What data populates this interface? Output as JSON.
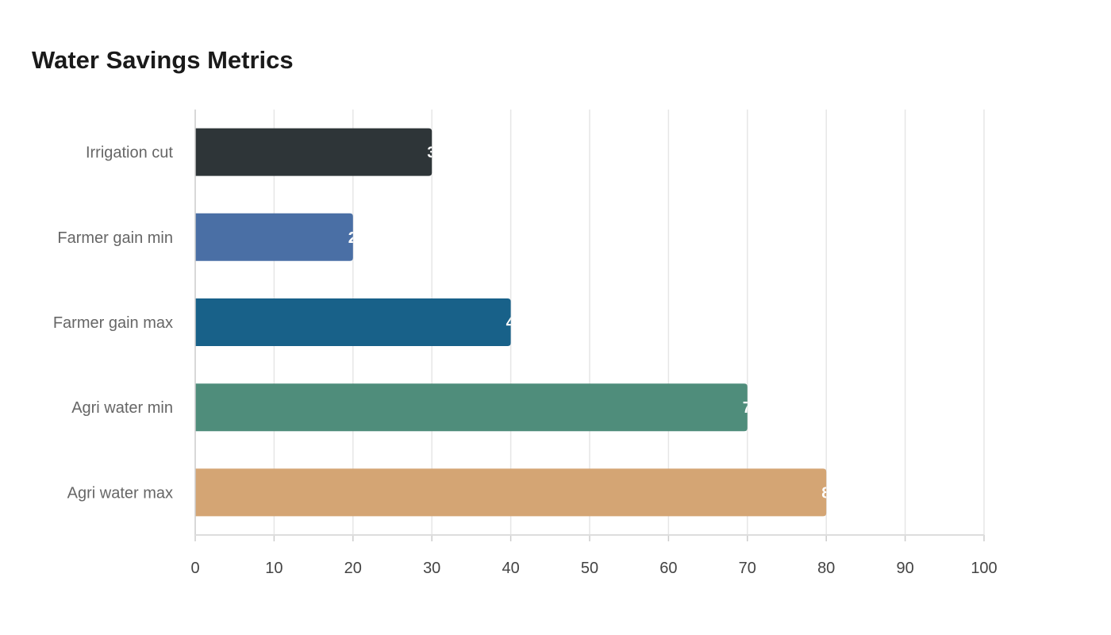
{
  "chart_data": {
    "type": "bar",
    "orientation": "horizontal",
    "title": "Water Savings Metrics",
    "xlabel": "",
    "ylabel": "",
    "categories": [
      "Irrigation cut",
      "Farmer gain min",
      "Farmer gain max",
      "Agri water min",
      "Agri water max"
    ],
    "values": [
      30,
      20,
      40,
      70,
      80
    ],
    "colors": [
      "#2e3538",
      "#4a6fa5",
      "#186189",
      "#4f8d7b",
      "#d4a574"
    ],
    "xlim": [
      0,
      100
    ],
    "xticks": [
      "0",
      "10",
      "20",
      "30",
      "40",
      "50",
      "60",
      "70",
      "80",
      "90",
      "100"
    ],
    "grid": "vertical"
  }
}
